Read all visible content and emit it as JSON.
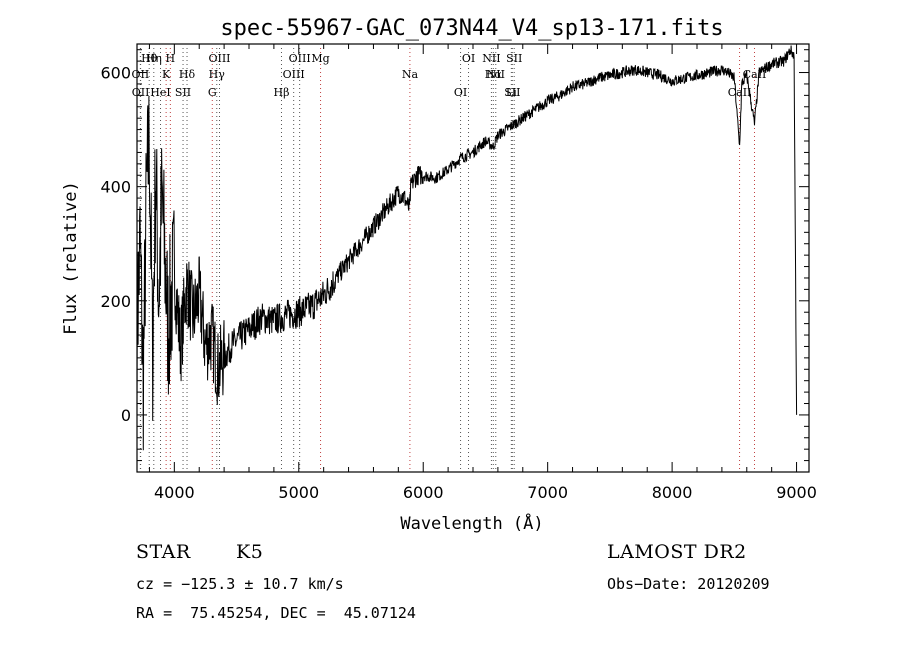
{
  "chart_data": {
    "type": "line",
    "title": "spec-55967-GAC_073N44_V4_sp13-171.fits",
    "xlabel": "Wavelength (Å)",
    "ylabel": "Flux (relative)",
    "xlim": [
      3700,
      9100
    ],
    "ylim": [
      -100,
      650
    ],
    "xticks": [
      4000,
      5000,
      6000,
      7000,
      8000,
      9000
    ],
    "yticks": [
      0,
      200,
      400,
      600
    ],
    "grid": false,
    "series": [
      {
        "x": [
          3700,
          3725,
          3750,
          3775,
          3800,
          3825,
          3850,
          3875,
          3900,
          3950,
          4000,
          4050,
          4100,
          4150,
          4200,
          4250,
          4300,
          4350,
          4400,
          4450,
          4500,
          4600,
          4700,
          4800,
          4900,
          5000,
          5100,
          5200,
          5300,
          5400,
          5500,
          5600,
          5700,
          5800,
          5850,
          5890,
          5900,
          5920,
          5950,
          6000,
          6100,
          6200,
          6300,
          6400,
          6500,
          6563,
          6600,
          6700,
          6800,
          6900,
          7000,
          7100,
          7200,
          7300,
          7400,
          7500,
          7600,
          7700,
          7800,
          7900,
          8000,
          8100,
          8200,
          8300,
          8400,
          8450,
          8500,
          8542,
          8560,
          8600,
          8662,
          8700,
          8800,
          8900,
          8950,
          8980,
          9000
        ],
        "y": [
          150,
          300,
          50,
          380,
          480,
          100,
          430,
          200,
          380,
          150,
          250,
          120,
          230,
          170,
          210,
          120,
          140,
          80,
          100,
          120,
          130,
          150,
          170,
          165,
          175,
          180,
          190,
          210,
          240,
          270,
          300,
          330,
          360,
          390,
          380,
          360,
          400,
          410,
          420,
          420,
          415,
          430,
          450,
          460,
          480,
          470,
          490,
          505,
          520,
          535,
          550,
          560,
          575,
          580,
          590,
          595,
          600,
          605,
          600,
          595,
          585,
          590,
          595,
          600,
          605,
          600,
          590,
          470,
          580,
          595,
          510,
          600,
          615,
          620,
          640,
          630,
          0
        ],
        "color": "#000000"
      }
    ],
    "line_markers": [
      {
        "label": "Hθ",
        "x": 3798
      },
      {
        "label": "OII",
        "x": 3727
      },
      {
        "label": "OII",
        "x": 3729
      },
      {
        "label": "Hη",
        "x": 3835
      },
      {
        "label": "K",
        "x": 3934
      },
      {
        "label": "HeI",
        "x": 3889
      },
      {
        "label": "H",
        "x": 3968
      },
      {
        "label": "Hδ",
        "x": 4102
      },
      {
        "label": "SII",
        "x": 4070
      },
      {
        "label": "OIII",
        "x": 4363
      },
      {
        "label": "Hγ",
        "x": 4341
      },
      {
        "label": "G",
        "x": 4305
      },
      {
        "label": "OIII",
        "x": 5007
      },
      {
        "label": "OIII",
        "x": 4959
      },
      {
        "label": "Hβ",
        "x": 4861
      },
      {
        "label": "Mg",
        "x": 5175
      },
      {
        "label": "Na",
        "x": 5893
      },
      {
        "label": "OI",
        "x": 6300
      },
      {
        "label": "OI",
        "x": 6364
      },
      {
        "label": "Hα",
        "x": 6563
      },
      {
        "label": "SII",
        "x": 6716
      },
      {
        "label": "NII",
        "x": 6548
      },
      {
        "label": "NII",
        "x": 6583
      },
      {
        "label": "Li",
        "x": 6708
      },
      {
        "label": "SII",
        "x": 6731
      },
      {
        "label": "CaII",
        "x": 8662
      },
      {
        "label": "CaII",
        "x": 8542
      }
    ]
  },
  "info": {
    "object_type": "STAR",
    "subclass": "K5",
    "survey": "LAMOST DR2",
    "cz_line": "cz = −125.3 ± 10.7 km/s",
    "obs_date_line": "Obs−Date: 20120209",
    "coords_line": "RA =  75.45254, DEC =  45.07124"
  }
}
